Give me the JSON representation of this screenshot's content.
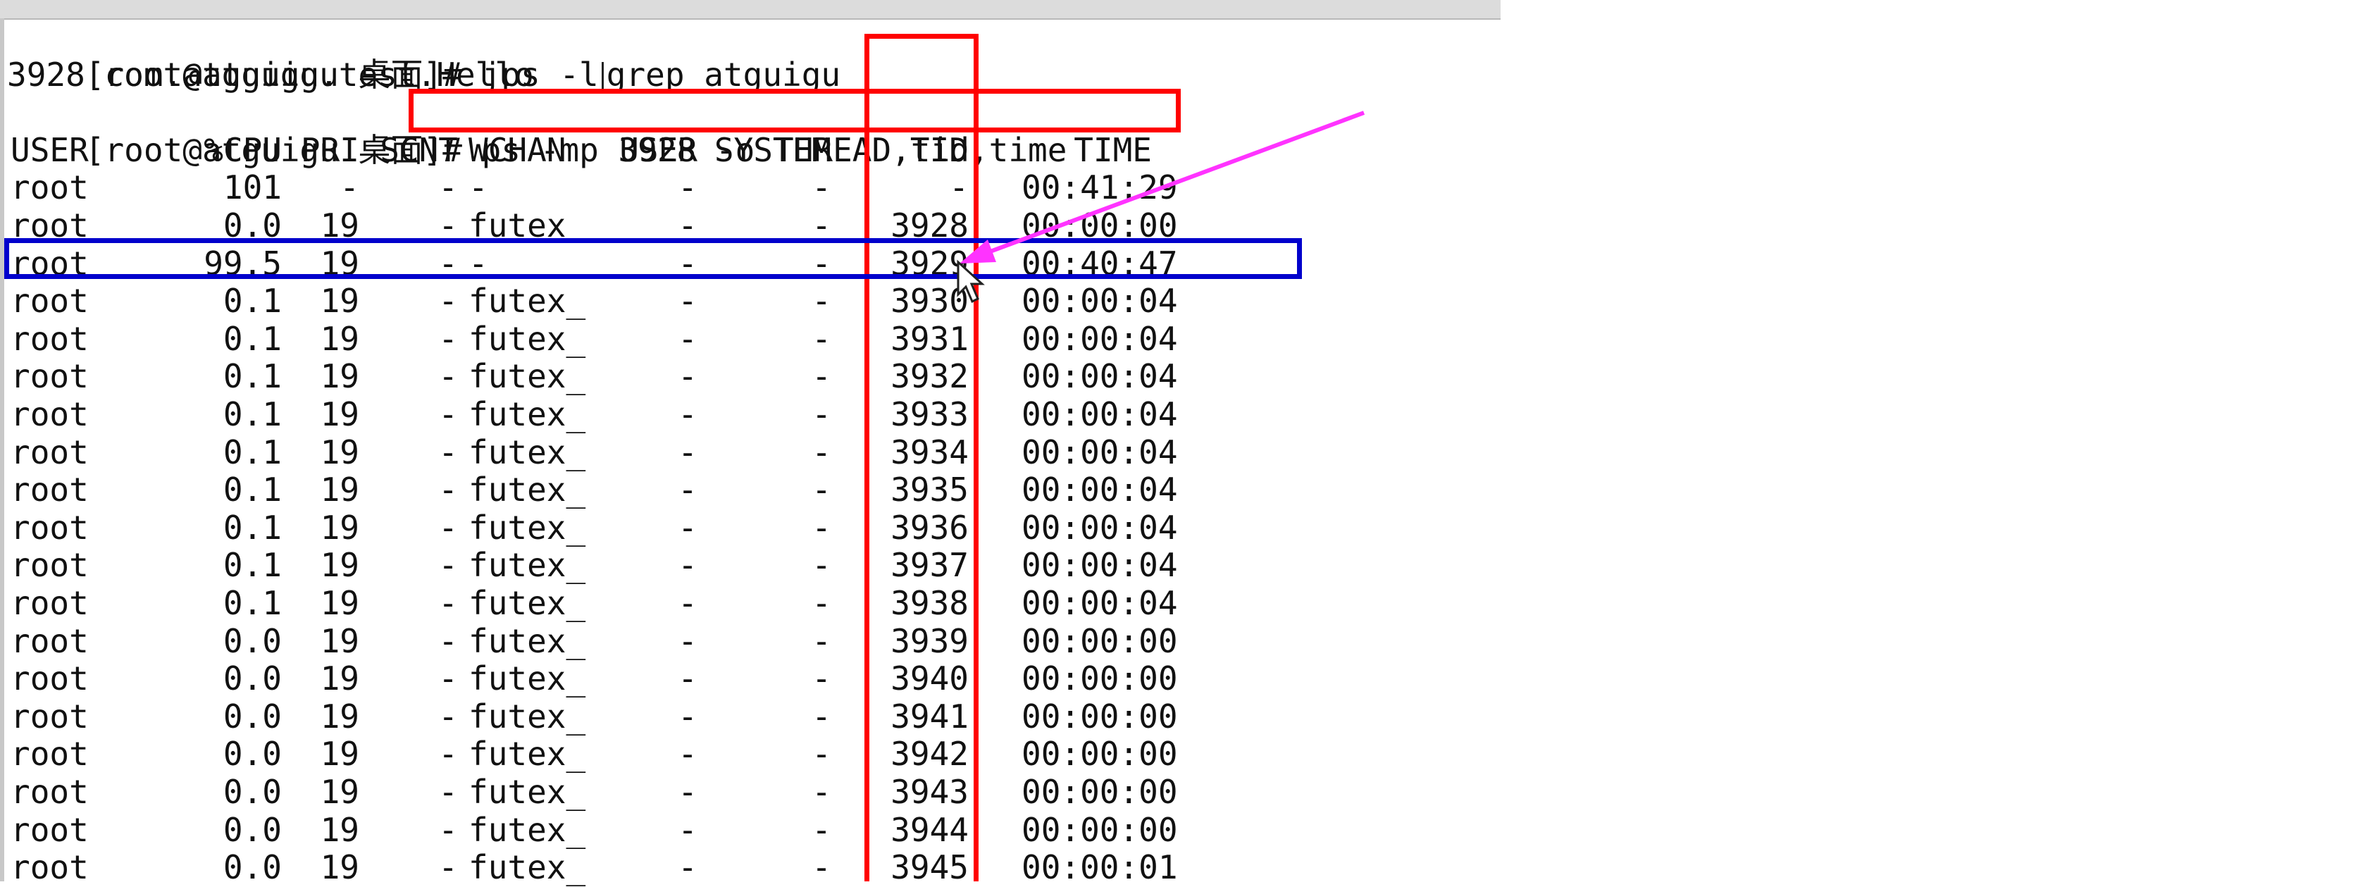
{
  "terminal": {
    "lines": [
      "[root@atguigu 桌面]# jps -l",
      "3928 com.atguigu.test.Hello",
      "[root@atguigu 桌面]# ",
      "ps -mp 3928 -o THREAD,tid,time",
      "grep atguigu"
    ],
    "cmd1_prefix": "[root@atguigu 桌面]# jps -l",
    "cmd1_suffix": "grep atguigu",
    "output1": "3928 com.atguigu.test.Hello",
    "prompt2": "[root@atguigu 桌面]# ",
    "cmd2": "ps -mp 3928 -o THREAD,tid,time"
  },
  "table": {
    "headers": [
      "USER",
      "%CPU",
      "PRI",
      "SCNT",
      "WCHAN",
      "USER",
      "SYSTEM",
      "TID",
      "TIME"
    ],
    "rows": [
      [
        "root",
        "101",
        "-",
        "-",
        "-",
        "-",
        "-",
        "-",
        "00:41:29"
      ],
      [
        "root",
        "0.0",
        "19",
        "-",
        "futex",
        "-",
        "-",
        "3928",
        "00:00:00"
      ],
      [
        "root",
        "99.5",
        "19",
        "-",
        "-",
        "-",
        "-",
        "3929",
        "00:40:47"
      ],
      [
        "root",
        "0.1",
        "19",
        "-",
        "futex_",
        "-",
        "-",
        "3930",
        "00:00:04"
      ],
      [
        "root",
        "0.1",
        "19",
        "-",
        "futex_",
        "-",
        "-",
        "3931",
        "00:00:04"
      ],
      [
        "root",
        "0.1",
        "19",
        "-",
        "futex_",
        "-",
        "-",
        "3932",
        "00:00:04"
      ],
      [
        "root",
        "0.1",
        "19",
        "-",
        "futex_",
        "-",
        "-",
        "3933",
        "00:00:04"
      ],
      [
        "root",
        "0.1",
        "19",
        "-",
        "futex_",
        "-",
        "-",
        "3934",
        "00:00:04"
      ],
      [
        "root",
        "0.1",
        "19",
        "-",
        "futex_",
        "-",
        "-",
        "3935",
        "00:00:04"
      ],
      [
        "root",
        "0.1",
        "19",
        "-",
        "futex_",
        "-",
        "-",
        "3936",
        "00:00:04"
      ],
      [
        "root",
        "0.1",
        "19",
        "-",
        "futex_",
        "-",
        "-",
        "3937",
        "00:00:04"
      ],
      [
        "root",
        "0.1",
        "19",
        "-",
        "futex_",
        "-",
        "-",
        "3938",
        "00:00:04"
      ],
      [
        "root",
        "0.0",
        "19",
        "-",
        "futex_",
        "-",
        "-",
        "3939",
        "00:00:00"
      ],
      [
        "root",
        "0.0",
        "19",
        "-",
        "futex_",
        "-",
        "-",
        "3940",
        "00:00:00"
      ],
      [
        "root",
        "0.0",
        "19",
        "-",
        "futex_",
        "-",
        "-",
        "3941",
        "00:00:00"
      ],
      [
        "root",
        "0.0",
        "19",
        "-",
        "futex_",
        "-",
        "-",
        "3942",
        "00:00:00"
      ],
      [
        "root",
        "0.0",
        "19",
        "-",
        "futex_",
        "-",
        "-",
        "3943",
        "00:00:00"
      ],
      [
        "root",
        "0.0",
        "19",
        "-",
        "futex_",
        "-",
        "-",
        "3944",
        "00:00:00"
      ],
      [
        "root",
        "0.0",
        "19",
        "-",
        "futex_",
        "-",
        "-",
        "3945",
        "00:00:01"
      ]
    ]
  },
  "annotations": {
    "command_box_color": "#ff0000",
    "tid_column_box_color": "#ff0000",
    "highlight_row_color": "#0000cc",
    "arrow_color": "#ff33ff",
    "arrow_icon": "arrow-icon",
    "mouse_pointer_icon": "mouse-pointer-icon"
  }
}
